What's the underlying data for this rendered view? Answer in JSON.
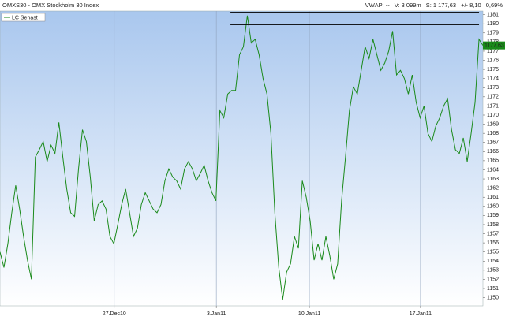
{
  "chart_data": {
    "type": "line",
    "title": "OMXS30 - OMX Stockholm 30 Index",
    "header_stats": [
      "VWAP: --",
      "V: 3 099m",
      "S: 1 177,63",
      "+/- 8,10",
      "0,69%"
    ],
    "series": [
      {
        "name": "LC Senast",
        "color": "#1a8a1a",
        "values": [
          1155.0,
          1153.3,
          1155.9,
          1159.3,
          1162.3,
          1159.7,
          1156.7,
          1154.1,
          1152.0,
          1165.4,
          1166.2,
          1167.1,
          1164.9,
          1166.7,
          1165.8,
          1169.2,
          1165.4,
          1161.9,
          1159.3,
          1158.9,
          1164.1,
          1168.4,
          1167.1,
          1163.2,
          1158.4,
          1160.2,
          1160.6,
          1159.7,
          1156.7,
          1155.9,
          1158.0,
          1160.2,
          1161.9,
          1159.3,
          1156.7,
          1157.6,
          1160.2,
          1161.5,
          1160.6,
          1159.7,
          1159.3,
          1160.2,
          1162.8,
          1164.1,
          1163.2,
          1162.8,
          1161.9,
          1164.1,
          1164.9,
          1164.1,
          1162.8,
          1163.6,
          1164.5,
          1162.8,
          1161.5,
          1160.6,
          1170.5,
          1169.7,
          1172.3,
          1172.7,
          1172.7,
          1176.6,
          1177.5,
          1180.9,
          1177.9,
          1178.3,
          1176.6,
          1174.0,
          1172.3,
          1168.0,
          1159.3,
          1153.3,
          1149.8,
          1152.8,
          1153.7,
          1156.7,
          1155.4,
          1162.8,
          1161.0,
          1158.4,
          1154.1,
          1155.9,
          1154.1,
          1156.7,
          1154.6,
          1152.0,
          1153.7,
          1160.6,
          1165.4,
          1170.5,
          1173.1,
          1172.3,
          1174.9,
          1177.5,
          1176.2,
          1178.3,
          1176.6,
          1174.9,
          1175.7,
          1177.0,
          1179.2,
          1174.4,
          1174.9,
          1174.0,
          1172.3,
          1174.4,
          1171.4,
          1169.7,
          1171.0,
          1168.0,
          1167.1,
          1168.8,
          1169.7,
          1171.0,
          1171.8,
          1168.4,
          1166.2,
          1165.8,
          1167.5,
          1164.9,
          1168.0,
          1171.4,
          1178.3,
          1177.63
        ]
      }
    ],
    "last_value": {
      "value": 1177.63,
      "label": "1177,63"
    },
    "trend_lines": [
      {
        "x": [
          58.7,
          122
        ],
        "y": [
          1181.26,
          1181.26
        ]
      },
      {
        "x": [
          58.7,
          122
        ],
        "y": [
          1179.9,
          1179.9
        ]
      }
    ],
    "xlim": [
      0,
      123
    ],
    "xticks": [
      {
        "value": 29.1,
        "label": "27.Dec10"
      },
      {
        "value": 55.1,
        "label": "3.Jan11"
      },
      {
        "value": 78.8,
        "label": "10.Jan11"
      },
      {
        "value": 107.1,
        "label": "17.Jan11"
      }
    ],
    "ylim": [
      1149.1,
      1181.4
    ],
    "yticks": [
      1150,
      1151,
      1152,
      1153,
      1154,
      1155,
      1156,
      1157,
      1158,
      1159,
      1160,
      1161,
      1162,
      1163,
      1164,
      1165,
      1166,
      1167,
      1168,
      1169,
      1170,
      1171,
      1172,
      1173,
      1174,
      1175,
      1176,
      1177,
      1178,
      1179,
      1180,
      1181
    ],
    "y_axis_side": "right"
  }
}
